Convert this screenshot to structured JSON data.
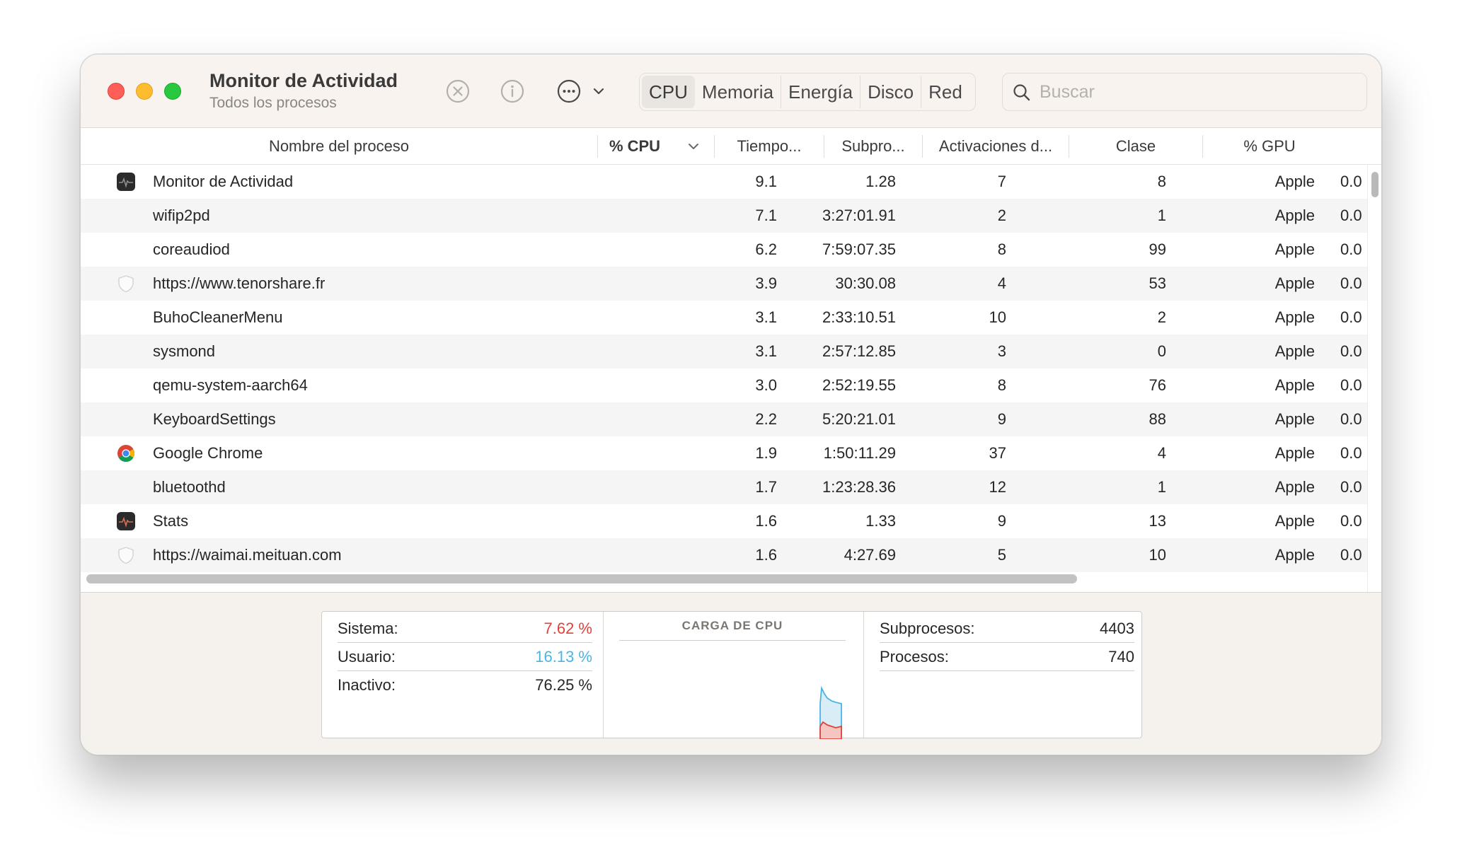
{
  "window": {
    "title": "Monitor de Actividad",
    "subtitle": "Todos los procesos"
  },
  "toolbar": {
    "stop_icon": "xmark-circle-icon",
    "info_icon": "info-circle-icon",
    "more_icon": "ellipsis-circle-icon",
    "tabs": [
      {
        "label": "CPU",
        "active": true
      },
      {
        "label": "Memoria",
        "active": false
      },
      {
        "label": "Energía",
        "active": false
      },
      {
        "label": "Disco",
        "active": false
      },
      {
        "label": "Red",
        "active": false
      }
    ],
    "search": {
      "placeholder": "Buscar",
      "value": ""
    }
  },
  "table": {
    "columns": {
      "name": "Nombre del proceso",
      "cpu": "% CPU",
      "time": "Tiempo...",
      "threads": "Subpro...",
      "wakes": "Activaciones d...",
      "class": "Clase",
      "gpu": "% GPU"
    },
    "rows": [
      {
        "icon": "activity-monitor-icon",
        "name": "Monitor de Actividad",
        "cpu": "9.1",
        "time": "1.28",
        "threads": "7",
        "wakes": "8",
        "class": "Apple",
        "gpu": "0.0"
      },
      {
        "icon": "",
        "name": "wifip2pd",
        "cpu": "7.1",
        "time": "3:27:01.91",
        "threads": "2",
        "wakes": "1",
        "class": "Apple",
        "gpu": "0.0"
      },
      {
        "icon": "",
        "name": "coreaudiod",
        "cpu": "6.2",
        "time": "7:59:07.35",
        "threads": "8",
        "wakes": "99",
        "class": "Apple",
        "gpu": "0.0"
      },
      {
        "icon": "shield-icon",
        "name": "https://www.tenorshare.fr",
        "cpu": "3.9",
        "time": "30:30.08",
        "threads": "4",
        "wakes": "53",
        "class": "Apple",
        "gpu": "0.0"
      },
      {
        "icon": "",
        "name": "BuhoCleanerMenu",
        "cpu": "3.1",
        "time": "2:33:10.51",
        "threads": "10",
        "wakes": "2",
        "class": "Apple",
        "gpu": "0.0"
      },
      {
        "icon": "",
        "name": "sysmond",
        "cpu": "3.1",
        "time": "2:57:12.85",
        "threads": "3",
        "wakes": "0",
        "class": "Apple",
        "gpu": "0.0"
      },
      {
        "icon": "",
        "name": "qemu-system-aarch64",
        "cpu": "3.0",
        "time": "2:52:19.55",
        "threads": "8",
        "wakes": "76",
        "class": "Apple",
        "gpu": "0.0"
      },
      {
        "icon": "",
        "name": "KeyboardSettings",
        "cpu": "2.2",
        "time": "5:20:21.01",
        "threads": "9",
        "wakes": "88",
        "class": "Apple",
        "gpu": "0.0"
      },
      {
        "icon": "chrome-icon",
        "name": "Google Chrome",
        "cpu": "1.9",
        "time": "1:50:11.29",
        "threads": "37",
        "wakes": "4",
        "class": "Apple",
        "gpu": "0.0"
      },
      {
        "icon": "",
        "name": "bluetoothd",
        "cpu": "1.7",
        "time": "1:23:28.36",
        "threads": "12",
        "wakes": "1",
        "class": "Apple",
        "gpu": "0.0"
      },
      {
        "icon": "stats-app-icon",
        "name": "Stats",
        "cpu": "1.6",
        "time": "1.33",
        "threads": "9",
        "wakes": "13",
        "class": "Apple",
        "gpu": "0.0"
      },
      {
        "icon": "shield-icon",
        "name": "https://waimai.meituan.com",
        "cpu": "1.6",
        "time": "4:27.69",
        "threads": "5",
        "wakes": "10",
        "class": "Apple",
        "gpu": "0.0"
      }
    ]
  },
  "summary": {
    "system_label": "Sistema:",
    "system_value": "7.62 %",
    "user_label": "Usuario:",
    "user_value": "16.13 %",
    "idle_label": "Inactivo:",
    "idle_value": "76.25 %",
    "chart_title": "CARGA DE CPU",
    "threads_label": "Subprocesos:",
    "threads_value": "4403",
    "processes_label": "Procesos:",
    "processes_value": "740"
  },
  "colors": {
    "system": "#e0423a",
    "user": "#4ab4e6",
    "accent_red": "#ff5f57",
    "accent_yellow": "#febc2e",
    "accent_green": "#28c840"
  }
}
